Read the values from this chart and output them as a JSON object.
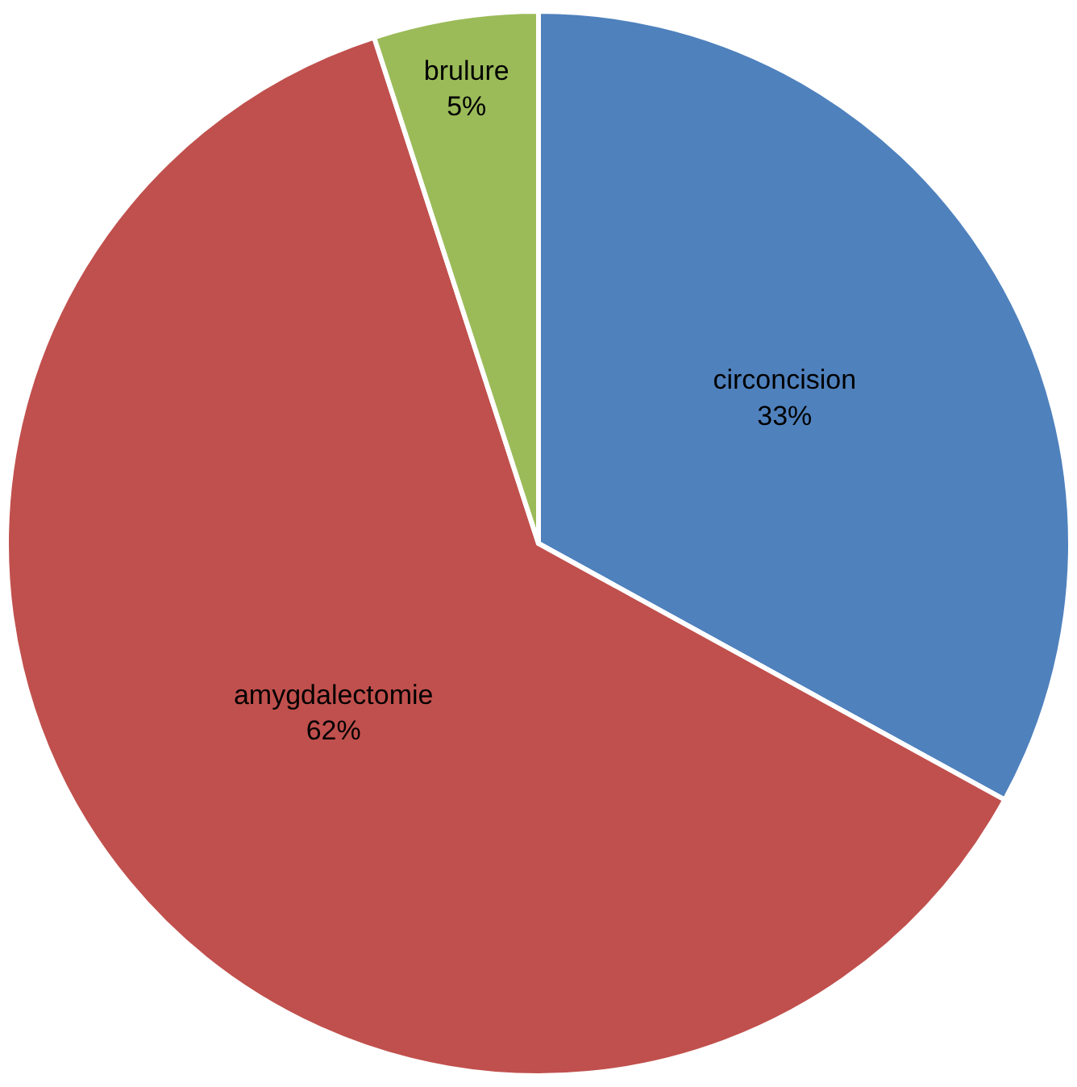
{
  "chart_data": {
    "type": "pie",
    "categories": [
      "circoncision",
      "amygdalectomie",
      "brulure"
    ],
    "values": [
      33,
      62,
      5
    ],
    "value_labels": [
      "33%",
      "62%",
      "5%"
    ],
    "colors": [
      "#4f81bd",
      "#c0504d",
      "#9bbb59"
    ]
  }
}
